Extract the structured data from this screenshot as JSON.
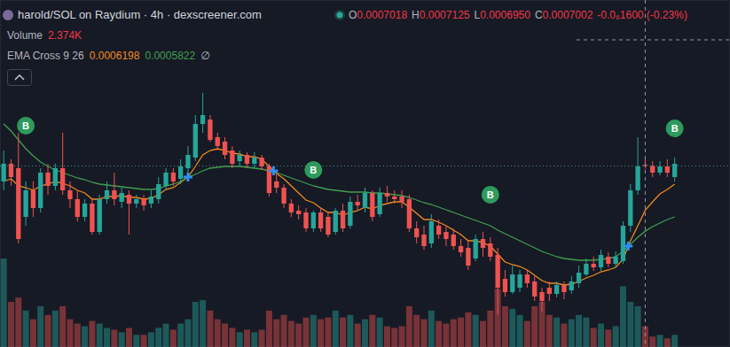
{
  "chart_data": {
    "type": "candlestick",
    "title": "harold/SOL on Raydium · 4h · dexscreener.com",
    "legend_items": [
      {
        "key": "O",
        "value": "0.0007018"
      },
      {
        "key": "H",
        "value": "0.0007125"
      },
      {
        "key": "L",
        "value": "0.0006950"
      },
      {
        "key": "C",
        "value": "0.0007002"
      }
    ],
    "change_label": "-0.0₆1600 (-0.23%)",
    "volume_label": "Volume",
    "volume_value_label": "2.374K",
    "indicator_label": "EMA Cross 9 26",
    "indicator_value_labels": [
      "0.0006198",
      "0.0005822"
    ],
    "indicator_empty_label": "∅",
    "categories": [
      null,
      null,
      null,
      null,
      null,
      null,
      null,
      null,
      null,
      null,
      null,
      null,
      null,
      null,
      null,
      null,
      null,
      null,
      null,
      null,
      null,
      null,
      null,
      null,
      null,
      null,
      null,
      null,
      null,
      null,
      null,
      null,
      null,
      null,
      null,
      null,
      null,
      null,
      null,
      null,
      null,
      null,
      null,
      null,
      null,
      null,
      null,
      null,
      null,
      null,
      null,
      null,
      null,
      null,
      null,
      null,
      null,
      null,
      null,
      null,
      null,
      null,
      null,
      null,
      null,
      null,
      null,
      null,
      null,
      null,
      null,
      null,
      null,
      null,
      null,
      null,
      null,
      null,
      null,
      null,
      null,
      null,
      null,
      null,
      null,
      null,
      null,
      null,
      null,
      null,
      null,
      null
    ],
    "open": [
      0.000672,
      0.000704,
      0.000696,
      0.000608,
      0.000656,
      0.000624,
      0.000688,
      0.000664,
      0.000696,
      0.000656,
      0.00064,
      0.000608,
      0.000632,
      0.0005808,
      0.00064,
      0.000656,
      0.0006352,
      0.000648,
      0.000632,
      0.00064,
      0.000632,
      0.00064,
      0.000664,
      0.000688,
      0.0006768,
      0.000696,
      0.0007152,
      0.000776,
      0.000784,
      0.000752,
      0.000744,
      0.000728,
      0.0007088,
      0.00072,
      0.000704,
      0.0007152,
      0.0006992,
      0.000672,
      0.0006608,
      0.000632,
      0.0006192,
      0.000616,
      0.0005872,
      0.000616,
      0.000608,
      0.0005808,
      0.0006192,
      0.000592,
      0.0006352,
      0.000624,
      0.0006512,
      0.0006128,
      0.0006512,
      0.0006448,
      0.0006448,
      0.00064,
      0.0005872,
      0.000576,
      0.00056,
      0.000592,
      0.0005808,
      0.000576,
      0.0005552,
      0.000552,
      0.0005328,
      0.000568,
      0.00056,
      0.0005392,
      0.000496,
      0.000472,
      0.00048,
      0.000504,
      0.0004912,
      0.000472,
      0.00048,
      0.0004688,
      0.0004848,
      0.0004752,
      0.000488,
      0.000504,
      0.0005232,
      0.0005168,
      0.000536,
      0.0005232,
      0.000528,
      0.000592,
      0.000656,
      0.0007018,
      0.0007002,
      0.000688,
      0.0006992,
      0.00068
    ],
    "high": [
      0.000728,
      0.000712,
      0.00076,
      0.000672,
      0.000672,
      0.000696,
      0.000704,
      0.000704,
      0.00076,
      0.000672,
      0.000656,
      0.00064,
      0.00064,
      0.000648,
      0.000672,
      0.000688,
      0.0006608,
      0.000656,
      0.000648,
      0.000648,
      0.000656,
      0.00068,
      0.000696,
      0.000696,
      0.000712,
      0.000736,
      0.000792,
      0.000832,
      0.000792,
      0.00076,
      0.000752,
      0.000736,
      0.000728,
      0.0007248,
      0.0007248,
      0.00072,
      0.000704,
      0.000688,
      0.0006672,
      0.00064,
      0.0006288,
      0.000624,
      0.0006192,
      0.000624,
      0.000616,
      0.000624,
      0.000632,
      0.0006448,
      0.000648,
      0.0006608,
      0.000656,
      0.0006608,
      0.000664,
      0.000656,
      0.000656,
      0.000648,
      0.0006,
      0.000592,
      0.0006128,
      0.0006032,
      0.000592,
      0.0005872,
      0.000568,
      0.0005648,
      0.000576,
      0.0005808,
      0.0005712,
      0.000552,
      0.000512,
      0.00052,
      0.000512,
      0.000512,
      0.0005008,
      0.00048,
      0.0004912,
      0.0004912,
      0.0004912,
      0.0005008,
      0.00052,
      0.0005328,
      0.000536,
      0.0005488,
      0.000544,
      0.0005456,
      0.0006,
      0.0006672,
      0.000752,
      0.0007125,
      0.0007088,
      0.0007088,
      0.000712,
      0.0007152
    ],
    "low": [
      0.000656,
      0.000664,
      0.00056,
      0.000592,
      0.000608,
      0.000616,
      0.000648,
      0.000656,
      0.000648,
      0.000624,
      0.0006,
      0.0006,
      0.000576,
      0.000576,
      0.000632,
      0.0006288,
      0.000624,
      0.000576,
      0.000624,
      0.0006192,
      0.000624,
      0.000632,
      0.000656,
      0.000664,
      0.0006672,
      0.000688,
      0.0007088,
      0.00076,
      0.000744,
      0.000728,
      0.000712,
      0.000696,
      0.0006992,
      0.000696,
      0.000696,
      0.0006928,
      0.0006448,
      0.0006512,
      0.000624,
      0.000608,
      0.0006032,
      0.0005808,
      0.0005808,
      0.0005808,
      0.0005712,
      0.000576,
      0.0005808,
      0.0005872,
      0.0006192,
      0.000616,
      0.0006,
      0.000608,
      0.0006352,
      0.000632,
      0.000624,
      0.0005808,
      0.00056,
      0.0005488,
      0.000552,
      0.000568,
      0.0005552,
      0.0005488,
      0.000536,
      0.000512,
      0.000528,
      0.000536,
      0.000528,
      0.000432,
      0.000464,
      0.0004688,
      0.000472,
      0.00048,
      0.000456,
      0.0004368,
      0.000456,
      0.0004624,
      0.0004592,
      0.0004688,
      0.00048,
      0.0005008,
      0.0005104,
      0.0005104,
      0.0005168,
      0.0005168,
      0.0005232,
      0.0005808,
      0.000648,
      0.000695,
      0.00068,
      0.0006832,
      0.00068,
      0.000672
    ],
    "close": [
      0.000704,
      0.00068,
      0.000568,
      0.000656,
      0.000624,
      0.000688,
      0.000664,
      0.000696,
      0.000656,
      0.00064,
      0.000608,
      0.000632,
      0.0005808,
      0.00064,
      0.000656,
      0.00064,
      0.0006512,
      0.000632,
      0.00064,
      0.0006288,
      0.0006448,
      0.0006672,
      0.000688,
      0.000672,
      0.0006992,
      0.00072,
      0.000776,
      0.000792,
      0.0007472,
      0.000736,
      0.00072,
      0.000704,
      0.00072,
      0.000704,
      0.0007152,
      0.0006992,
      0.0006512,
      0.0006608,
      0.000632,
      0.000616,
      0.0006128,
      0.0005872,
      0.000616,
      0.0005872,
      0.000576,
      0.0006192,
      0.0005872,
      0.0006352,
      0.0006288,
      0.0006512,
      0.000608,
      0.0006512,
      0.0006448,
      0.00064,
      0.0006352,
      0.0005872,
      0.0005712,
      0.0005552,
      0.0006,
      0.000576,
      0.000568,
      0.0005552,
      0.000544,
      0.00052,
      0.000568,
      0.000552,
      0.000536,
      0.00048,
      0.000472,
      0.000504,
      0.000504,
      0.000488,
      0.000464,
      0.000456,
      0.0004688,
      0.0004848,
      0.000472,
      0.0004912,
      0.0005072,
      0.0005232,
      0.0005168,
      0.0005392,
      0.0005232,
      0.000536,
      0.000592,
      0.000656,
      0.0006992,
      0.0007002,
      0.000688,
      0.0006992,
      0.000688,
      0.000704
    ],
    "volume": [
      10200,
      5200,
      5700,
      4200,
      3200,
      4700,
      3700,
      4200,
      4700,
      3200,
      2700,
      2400,
      3000,
      2700,
      2200,
      2000,
      1700,
      2200,
      1400,
      1400,
      1700,
      2200,
      2700,
      2000,
      2700,
      3200,
      5200,
      5400,
      4200,
      3200,
      2700,
      2200,
      1700,
      2000,
      1700,
      2000,
      4200,
      3200,
      3700,
      3000,
      2700,
      3400,
      3700,
      3200,
      3400,
      4200,
      3400,
      3700,
      2700,
      3200,
      3700,
      3400,
      2400,
      2200,
      2400,
      4700,
      3700,
      3200,
      4200,
      3000,
      2700,
      3200,
      3400,
      4000,
      3700,
      3000,
      4200,
      6700,
      4700,
      4400,
      3700,
      3000,
      4700,
      5200,
      3700,
      3400,
      2700,
      3200,
      3700,
      3400,
      2200,
      2700,
      2000,
      2400,
      7000,
      5200,
      4700,
      2374,
      1200,
      1400,
      1000,
      1400
    ],
    "series": [
      {
        "color": "#f0891f",
        "values": [
          0.000672,
          0.0006768,
          0.000664,
          0.0006608,
          0.000656,
          0.000664,
          0.0006672,
          0.000672,
          0.0006688,
          0.000664,
          0.000656,
          0.0006512,
          0.00064,
          0.00064,
          0.0006448,
          0.0006448,
          0.0006464,
          0.0006432,
          0.0006432,
          0.00064,
          0.0006416,
          0.000648,
          0.0006576,
          0.0006608,
          0.0006704,
          0.00068,
          0.0006992,
          0.00072,
          0.000728,
          0.0007312,
          0.000728,
          0.0007232,
          0.0007216,
          0.0007168,
          0.0007168,
          0.000712,
          0.0006992,
          0.0006864,
          0.0006768,
          0.000664,
          0.0006512,
          0.0006384,
          0.0006336,
          0.000624,
          0.000616,
          0.000616,
          0.0006112,
          0.000616,
          0.0006192,
          0.0006256,
          0.0006224,
          0.0006288,
          0.000632,
          0.0006352,
          0.0006352,
          0.0006256,
          0.0006144,
          0.0006032,
          0.0006032,
          0.0005984,
          0.000592,
          0.000584,
          0.000576,
          0.0005648,
          0.0005648,
          0.0005616,
          0.0005552,
          0.0005408,
          0.0005264,
          0.0005216,
          0.0005184,
          0.000512,
          0.0005024,
          0.0004928,
          0.000488,
          0.000488,
          0.0004848,
          0.0004864,
          0.0004912,
          0.0004976,
          0.0005024,
          0.0005088,
          0.000512,
          0.0005168,
          0.0005312,
          0.0005648,
          0.000592,
          0.0006198,
          0.0006352,
          0.0006496,
          0.0006576,
          0.0006672
        ]
      },
      {
        "color": "#3f9f4f",
        "values": [
          0.000776,
          0.0007632,
          0.0007472,
          0.0007312,
          0.0007184,
          0.0007072,
          0.0006992,
          0.0006928,
          0.000688,
          0.0006832,
          0.0006784,
          0.0006752,
          0.0006704,
          0.0006672,
          0.0006656,
          0.000664,
          0.0006624,
          0.0006608,
          0.0006592,
          0.0006576,
          0.0006576,
          0.0006592,
          0.000664,
          0.0006672,
          0.000672,
          0.00068,
          0.0006848,
          0.0006912,
          0.000696,
          0.0006976,
          0.0006992,
          0.0006992,
          0.0006992,
          0.0006976,
          0.000696,
          0.0006944,
          0.0006912,
          0.000688,
          0.0006832,
          0.0006784,
          0.0006736,
          0.0006688,
          0.000664,
          0.0006608,
          0.0006576,
          0.000656,
          0.0006544,
          0.0006528,
          0.0006528,
          0.0006528,
          0.0006512,
          0.0006512,
          0.0006496,
          0.000648,
          0.0006464,
          0.0006432,
          0.0006384,
          0.0006336,
          0.0006304,
          0.0006256,
          0.0006208,
          0.000616,
          0.0006112,
          0.0006064,
          0.0006016,
          0.0005968,
          0.000592,
          0.000584,
          0.0005776,
          0.0005712,
          0.0005648,
          0.0005584,
          0.000552,
          0.0005456,
          0.0005408,
          0.000536,
          0.0005328,
          0.0005312,
          0.0005296,
          0.0005296,
          0.0005296,
          0.0005312,
          0.0005328,
          0.000536,
          0.0005456,
          0.0005584,
          0.0005712,
          0.0005822,
          0.0005904,
          0.0005968,
          0.0006032,
          0.000608
        ]
      }
    ],
    "markers": [
      {
        "index": 3,
        "value": 0.0007728,
        "label": "B"
      },
      {
        "index": 42,
        "value": 0.0006928,
        "label": "B"
      },
      {
        "index": 66,
        "value": 0.000648,
        "label": "B"
      },
      {
        "index": 91,
        "value": 0.000768,
        "label": "B"
      }
    ],
    "crosses": [
      {
        "index": 25,
        "value": 0.00068
      },
      {
        "index": 36.6,
        "value": 0.0006912
      },
      {
        "index": 84.7,
        "value": 0.0005552
      }
    ],
    "price_line": 0.0007,
    "crosshair": {
      "index": 87,
      "value": 0.000928
    },
    "ylim": [
      0.0003728,
      0.001
    ],
    "y2lim": [
      0,
      40000
    ],
    "tick_labels": false,
    "grid": false
  }
}
